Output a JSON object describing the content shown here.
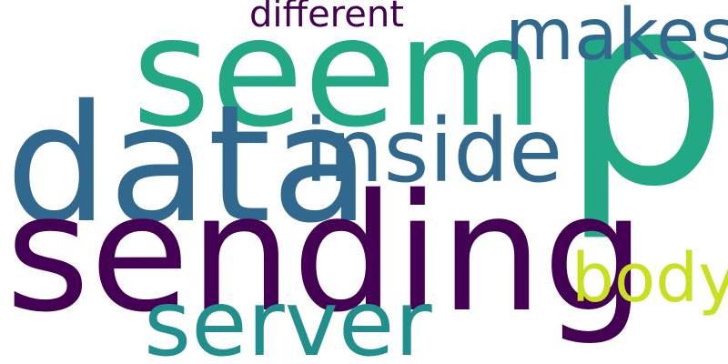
{
  "word_cloud": {
    "words": [
      {
        "text": "p",
        "color": "#22a884"
      },
      {
        "text": "seem",
        "color": "#22a884"
      },
      {
        "text": "data",
        "color": "#31688e"
      },
      {
        "text": "sending",
        "color": "#440154"
      },
      {
        "text": "inside",
        "color": "#31688e"
      },
      {
        "text": "makes",
        "color": "#31688e"
      },
      {
        "text": "server",
        "color": "#21908d"
      },
      {
        "text": "body",
        "color": "#c8e020"
      },
      {
        "text": "different",
        "color": "#440154"
      }
    ]
  }
}
